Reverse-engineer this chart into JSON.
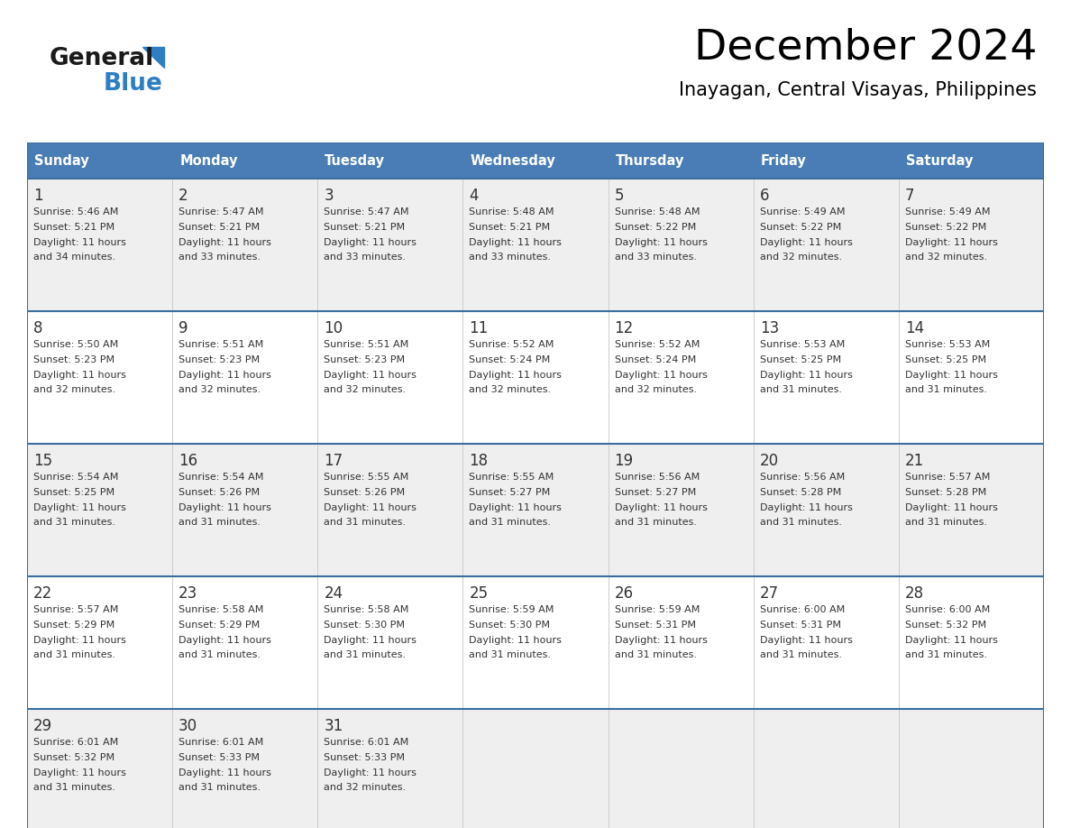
{
  "title": "December 2024",
  "subtitle": "Inayagan, Central Visayas, Philippines",
  "days_of_week": [
    "Sunday",
    "Monday",
    "Tuesday",
    "Wednesday",
    "Thursday",
    "Friday",
    "Saturday"
  ],
  "header_bg": "#4A7DB5",
  "header_text": "#FFFFFF",
  "row_bg_odd": "#EFEFEF",
  "row_bg_even": "#FFFFFF",
  "border_color": "#3A6E9F",
  "text_color": "#333333",
  "days": [
    {
      "day": 1,
      "col": 0,
      "row": 0,
      "sunrise": "5:46 AM",
      "sunset": "5:21 PM",
      "daylight": "11 hours and 34 minutes."
    },
    {
      "day": 2,
      "col": 1,
      "row": 0,
      "sunrise": "5:47 AM",
      "sunset": "5:21 PM",
      "daylight": "11 hours and 33 minutes."
    },
    {
      "day": 3,
      "col": 2,
      "row": 0,
      "sunrise": "5:47 AM",
      "sunset": "5:21 PM",
      "daylight": "11 hours and 33 minutes."
    },
    {
      "day": 4,
      "col": 3,
      "row": 0,
      "sunrise": "5:48 AM",
      "sunset": "5:21 PM",
      "daylight": "11 hours and 33 minutes."
    },
    {
      "day": 5,
      "col": 4,
      "row": 0,
      "sunrise": "5:48 AM",
      "sunset": "5:22 PM",
      "daylight": "11 hours and 33 minutes."
    },
    {
      "day": 6,
      "col": 5,
      "row": 0,
      "sunrise": "5:49 AM",
      "sunset": "5:22 PM",
      "daylight": "11 hours and 32 minutes."
    },
    {
      "day": 7,
      "col": 6,
      "row": 0,
      "sunrise": "5:49 AM",
      "sunset": "5:22 PM",
      "daylight": "11 hours and 32 minutes."
    },
    {
      "day": 8,
      "col": 0,
      "row": 1,
      "sunrise": "5:50 AM",
      "sunset": "5:23 PM",
      "daylight": "11 hours and 32 minutes."
    },
    {
      "day": 9,
      "col": 1,
      "row": 1,
      "sunrise": "5:51 AM",
      "sunset": "5:23 PM",
      "daylight": "11 hours and 32 minutes."
    },
    {
      "day": 10,
      "col": 2,
      "row": 1,
      "sunrise": "5:51 AM",
      "sunset": "5:23 PM",
      "daylight": "11 hours and 32 minutes."
    },
    {
      "day": 11,
      "col": 3,
      "row": 1,
      "sunrise": "5:52 AM",
      "sunset": "5:24 PM",
      "daylight": "11 hours and 32 minutes."
    },
    {
      "day": 12,
      "col": 4,
      "row": 1,
      "sunrise": "5:52 AM",
      "sunset": "5:24 PM",
      "daylight": "11 hours and 32 minutes."
    },
    {
      "day": 13,
      "col": 5,
      "row": 1,
      "sunrise": "5:53 AM",
      "sunset": "5:25 PM",
      "daylight": "11 hours and 31 minutes."
    },
    {
      "day": 14,
      "col": 6,
      "row": 1,
      "sunrise": "5:53 AM",
      "sunset": "5:25 PM",
      "daylight": "11 hours and 31 minutes."
    },
    {
      "day": 15,
      "col": 0,
      "row": 2,
      "sunrise": "5:54 AM",
      "sunset": "5:25 PM",
      "daylight": "11 hours and 31 minutes."
    },
    {
      "day": 16,
      "col": 1,
      "row": 2,
      "sunrise": "5:54 AM",
      "sunset": "5:26 PM",
      "daylight": "11 hours and 31 minutes."
    },
    {
      "day": 17,
      "col": 2,
      "row": 2,
      "sunrise": "5:55 AM",
      "sunset": "5:26 PM",
      "daylight": "11 hours and 31 minutes."
    },
    {
      "day": 18,
      "col": 3,
      "row": 2,
      "sunrise": "5:55 AM",
      "sunset": "5:27 PM",
      "daylight": "11 hours and 31 minutes."
    },
    {
      "day": 19,
      "col": 4,
      "row": 2,
      "sunrise": "5:56 AM",
      "sunset": "5:27 PM",
      "daylight": "11 hours and 31 minutes."
    },
    {
      "day": 20,
      "col": 5,
      "row": 2,
      "sunrise": "5:56 AM",
      "sunset": "5:28 PM",
      "daylight": "11 hours and 31 minutes."
    },
    {
      "day": 21,
      "col": 6,
      "row": 2,
      "sunrise": "5:57 AM",
      "sunset": "5:28 PM",
      "daylight": "11 hours and 31 minutes."
    },
    {
      "day": 22,
      "col": 0,
      "row": 3,
      "sunrise": "5:57 AM",
      "sunset": "5:29 PM",
      "daylight": "11 hours and 31 minutes."
    },
    {
      "day": 23,
      "col": 1,
      "row": 3,
      "sunrise": "5:58 AM",
      "sunset": "5:29 PM",
      "daylight": "11 hours and 31 minutes."
    },
    {
      "day": 24,
      "col": 2,
      "row": 3,
      "sunrise": "5:58 AM",
      "sunset": "5:30 PM",
      "daylight": "11 hours and 31 minutes."
    },
    {
      "day": 25,
      "col": 3,
      "row": 3,
      "sunrise": "5:59 AM",
      "sunset": "5:30 PM",
      "daylight": "11 hours and 31 minutes."
    },
    {
      "day": 26,
      "col": 4,
      "row": 3,
      "sunrise": "5:59 AM",
      "sunset": "5:31 PM",
      "daylight": "11 hours and 31 minutes."
    },
    {
      "day": 27,
      "col": 5,
      "row": 3,
      "sunrise": "6:00 AM",
      "sunset": "5:31 PM",
      "daylight": "11 hours and 31 minutes."
    },
    {
      "day": 28,
      "col": 6,
      "row": 3,
      "sunrise": "6:00 AM",
      "sunset": "5:32 PM",
      "daylight": "11 hours and 31 minutes."
    },
    {
      "day": 29,
      "col": 0,
      "row": 4,
      "sunrise": "6:01 AM",
      "sunset": "5:32 PM",
      "daylight": "11 hours and 31 minutes."
    },
    {
      "day": 30,
      "col": 1,
      "row": 4,
      "sunrise": "6:01 AM",
      "sunset": "5:33 PM",
      "daylight": "11 hours and 31 minutes."
    },
    {
      "day": 31,
      "col": 2,
      "row": 4,
      "sunrise": "6:01 AM",
      "sunset": "5:33 PM",
      "daylight": "11 hours and 32 minutes."
    }
  ],
  "logo_general_color": "#1a1a1a",
  "logo_blue_color": "#2E7EC4",
  "logo_triangle_color": "#2E7EC4",
  "fig_width": 11.88,
  "fig_height": 9.18,
  "dpi": 100
}
